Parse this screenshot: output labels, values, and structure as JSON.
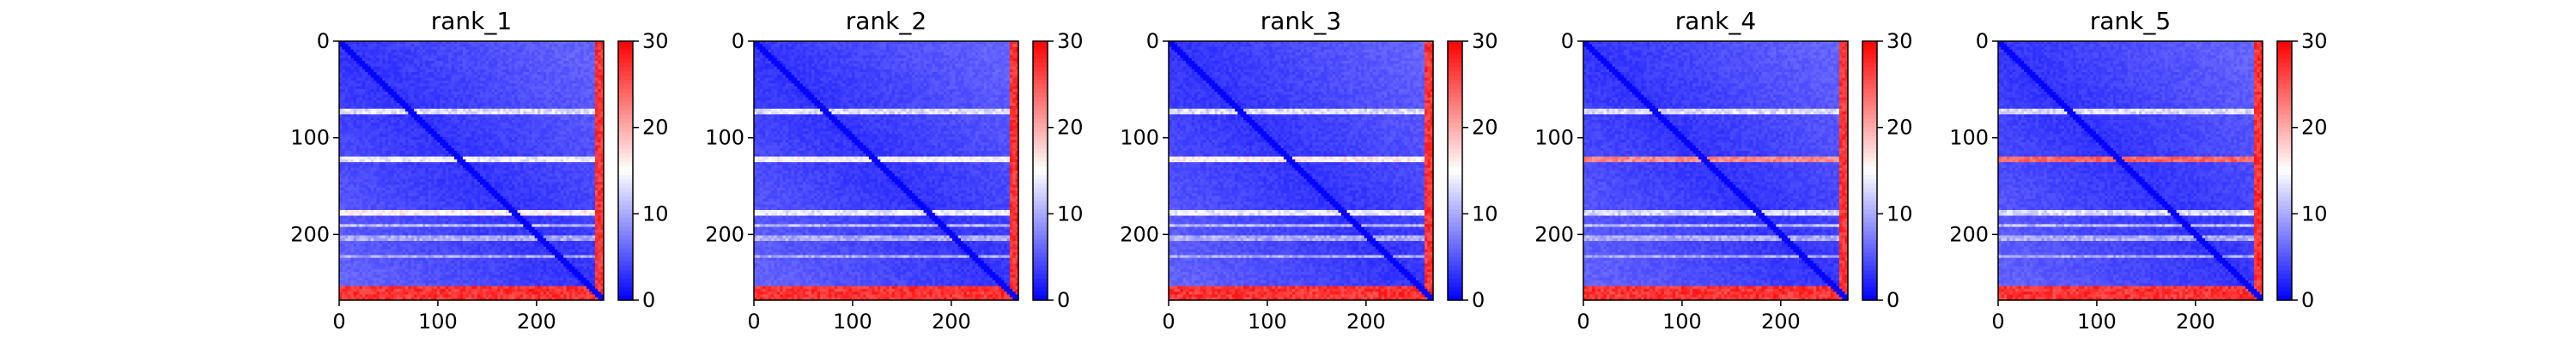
{
  "chart_data": [
    {
      "type": "heatmap",
      "title": "rank_1",
      "xlim": [
        0,
        268
      ],
      "ylim": [
        268,
        0
      ],
      "xticks": [
        0,
        100,
        200
      ],
      "yticks": [
        0,
        100,
        200
      ],
      "colorbar": {
        "min": 0,
        "max": 30,
        "ticks": [
          0,
          10,
          20,
          30
        ],
        "colormap": "bwr"
      },
      "row_bands": [
        {
          "start": 70,
          "end": 76,
          "value": 13
        },
        {
          "start": 119,
          "end": 126,
          "value": 14
        },
        {
          "start": 176,
          "end": 182,
          "value": 16
        },
        {
          "start": 188,
          "end": 192,
          "value": 11
        },
        {
          "start": 202,
          "end": 206,
          "value": 10
        },
        {
          "start": 220,
          "end": 223,
          "value": 10
        },
        {
          "start": 252,
          "end": 268,
          "value": 27
        }
      ],
      "col_bands": [
        {
          "start": 258,
          "end": 268,
          "value": 27
        }
      ]
    },
    {
      "type": "heatmap",
      "title": "rank_2",
      "xlim": [
        0,
        268
      ],
      "ylim": [
        268,
        0
      ],
      "xticks": [
        0,
        100,
        200
      ],
      "yticks": [
        0,
        100,
        200
      ],
      "colorbar": {
        "min": 0,
        "max": 30,
        "ticks": [
          0,
          10,
          20,
          30
        ],
        "colormap": "bwr"
      },
      "row_bands": [
        {
          "start": 70,
          "end": 76,
          "value": 13
        },
        {
          "start": 119,
          "end": 126,
          "value": 15
        },
        {
          "start": 176,
          "end": 182,
          "value": 14
        },
        {
          "start": 188,
          "end": 192,
          "value": 11
        },
        {
          "start": 202,
          "end": 206,
          "value": 10
        },
        {
          "start": 220,
          "end": 223,
          "value": 10
        },
        {
          "start": 252,
          "end": 268,
          "value": 27
        }
      ],
      "col_bands": [
        {
          "start": 258,
          "end": 268,
          "value": 27
        }
      ]
    },
    {
      "type": "heatmap",
      "title": "rank_3",
      "xlim": [
        0,
        268
      ],
      "ylim": [
        268,
        0
      ],
      "xticks": [
        0,
        100,
        200
      ],
      "yticks": [
        0,
        100,
        200
      ],
      "colorbar": {
        "min": 0,
        "max": 30,
        "ticks": [
          0,
          10,
          20,
          30
        ],
        "colormap": "bwr"
      },
      "row_bands": [
        {
          "start": 70,
          "end": 76,
          "value": 13
        },
        {
          "start": 119,
          "end": 126,
          "value": 16
        },
        {
          "start": 176,
          "end": 182,
          "value": 14
        },
        {
          "start": 188,
          "end": 192,
          "value": 11
        },
        {
          "start": 202,
          "end": 206,
          "value": 10
        },
        {
          "start": 220,
          "end": 223,
          "value": 10
        },
        {
          "start": 252,
          "end": 268,
          "value": 27
        }
      ],
      "col_bands": [
        {
          "start": 258,
          "end": 268,
          "value": 27
        }
      ]
    },
    {
      "type": "heatmap",
      "title": "rank_4",
      "xlim": [
        0,
        268
      ],
      "ylim": [
        268,
        0
      ],
      "xticks": [
        0,
        100,
        200
      ],
      "yticks": [
        0,
        100,
        200
      ],
      "colorbar": {
        "min": 0,
        "max": 30,
        "ticks": [
          0,
          10,
          20,
          30
        ],
        "colormap": "bwr"
      },
      "row_bands": [
        {
          "start": 70,
          "end": 76,
          "value": 13
        },
        {
          "start": 119,
          "end": 126,
          "value": 22
        },
        {
          "start": 176,
          "end": 182,
          "value": 13
        },
        {
          "start": 188,
          "end": 192,
          "value": 11
        },
        {
          "start": 202,
          "end": 206,
          "value": 10
        },
        {
          "start": 220,
          "end": 223,
          "value": 10
        },
        {
          "start": 252,
          "end": 268,
          "value": 27
        }
      ],
      "col_bands": [
        {
          "start": 258,
          "end": 268,
          "value": 27
        }
      ]
    },
    {
      "type": "heatmap",
      "title": "rank_5",
      "xlim": [
        0,
        268
      ],
      "ylim": [
        268,
        0
      ],
      "xticks": [
        0,
        100,
        200
      ],
      "yticks": [
        0,
        100,
        200
      ],
      "colorbar": {
        "min": 0,
        "max": 30,
        "ticks": [
          0,
          10,
          20,
          30
        ],
        "colormap": "bwr"
      },
      "row_bands": [
        {
          "start": 70,
          "end": 76,
          "value": 13
        },
        {
          "start": 119,
          "end": 126,
          "value": 24
        },
        {
          "start": 176,
          "end": 182,
          "value": 13
        },
        {
          "start": 188,
          "end": 192,
          "value": 11
        },
        {
          "start": 202,
          "end": 206,
          "value": 10
        },
        {
          "start": 220,
          "end": 223,
          "value": 10
        },
        {
          "start": 252,
          "end": 268,
          "value": 27
        }
      ],
      "col_bands": [
        {
          "start": 258,
          "end": 268,
          "value": 27
        }
      ]
    }
  ]
}
